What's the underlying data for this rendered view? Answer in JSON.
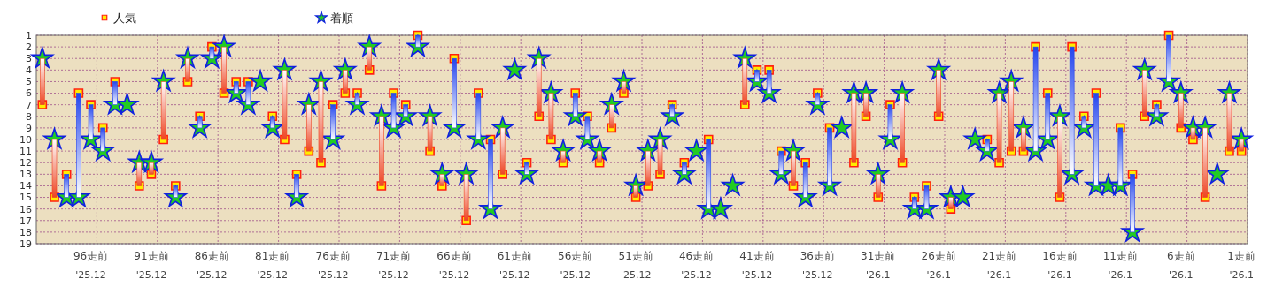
{
  "chart_data": {
    "type": "scatter",
    "categories": [
      null,
      null,
      null,
      null,
      "96走前\n'25.12",
      null,
      null,
      null,
      null,
      "91走前\n'25.12",
      null,
      null,
      null,
      null,
      "86走前\n'25.12",
      null,
      null,
      null,
      null,
      "81走前\n'25.12",
      null,
      null,
      null,
      null,
      "76走前\n'25.12",
      null,
      null,
      null,
      null,
      "71走前\n'25.12",
      null,
      null,
      null,
      null,
      "66走前\n'25.12",
      null,
      null,
      null,
      null,
      "61走前\n'25.12",
      null,
      null,
      null,
      null,
      "56走前\n'25.12",
      null,
      null,
      null,
      null,
      "51走前\n'25.12",
      null,
      null,
      null,
      null,
      "46走前\n'25.12",
      null,
      null,
      null,
      null,
      "41走前\n'25.12",
      null,
      null,
      null,
      null,
      "36走前\n'25.12",
      null,
      null,
      null,
      null,
      "31走前\n'26.1",
      null,
      null,
      null,
      null,
      "26走前\n'26.1",
      null,
      null,
      null,
      null,
      "21走前\n'26.1",
      null,
      null,
      null,
      null,
      "16走前\n'26.1",
      null,
      null,
      null,
      null,
      "11走前\n'26.1",
      null,
      null,
      null,
      null,
      "6走前\n'26.1",
      null,
      null,
      null,
      null,
      "1走前\n'26.1"
    ],
    "series": [
      {
        "type": "bar",
        "base": [
          7,
          15,
          13,
          6,
          7,
          9,
          5,
          null,
          14,
          13,
          10,
          14,
          5,
          8,
          2,
          6,
          5,
          5,
          null,
          8,
          10,
          13,
          11,
          12,
          7,
          6,
          6,
          4,
          14,
          6,
          7,
          1,
          11,
          14,
          3,
          17,
          6,
          10,
          13,
          null,
          12,
          8,
          10,
          12,
          6,
          8,
          12,
          9,
          6,
          15,
          14,
          13,
          7,
          12,
          null,
          10,
          null,
          null,
          7,
          4,
          4,
          11,
          14,
          12,
          6,
          9,
          null,
          12,
          8,
          15,
          7,
          12,
          15,
          14,
          8,
          16,
          null,
          null,
          10,
          12,
          11,
          11,
          2,
          6,
          15,
          2,
          8,
          6,
          null,
          9,
          13,
          8,
          7,
          1,
          9,
          10,
          15,
          null,
          11,
          11
        ],
        "values": [
          -4,
          -5,
          2,
          9,
          3,
          2,
          2,
          null,
          -2,
          -1,
          -5,
          1,
          -2,
          1,
          1,
          -4,
          1,
          2,
          null,
          1,
          -6,
          2,
          -4,
          -7,
          3,
          -2,
          1,
          -2,
          -6,
          3,
          1,
          1,
          -3,
          -1,
          6,
          -4,
          4,
          6,
          -4,
          null,
          1,
          -5,
          -4,
          -1,
          2,
          2,
          -1,
          -2,
          -1,
          -1,
          -3,
          -3,
          1,
          1,
          null,
          6,
          null,
          null,
          -4,
          1,
          2,
          2,
          -3,
          3,
          1,
          5,
          null,
          -6,
          -2,
          -2,
          3,
          -6,
          1,
          2,
          -4,
          -1,
          null,
          null,
          1,
          -6,
          -6,
          -2,
          9,
          4,
          -7,
          11,
          1,
          8,
          null,
          5,
          5,
          -4,
          1,
          4,
          -3,
          -1,
          -6,
          null,
          -5,
          -1
        ],
        "colors": [
          "#ee4422",
          "#ee4422",
          "#2244ee",
          "#2244ee",
          "#2244ee",
          "#2244ee",
          "#2244ee",
          null,
          "#ee4422",
          "#ee4422",
          "#ee4422",
          "#2244ee",
          "#ee4422",
          "#2244ee",
          "#2244ee",
          "#ee4422",
          "#2244ee",
          "#2244ee",
          null,
          "#2244ee",
          "#ee4422",
          "#2244ee",
          "#ee4422",
          "#ee4422",
          "#2244ee",
          "#ee4422",
          "#2244ee",
          "#ee4422",
          "#ee4422",
          "#2244ee",
          "#2244ee",
          "#2244ee",
          "#ee4422",
          "#ee4422",
          "#2244ee",
          "#ee4422",
          "#2244ee",
          "#2244ee",
          "#ee4422",
          null,
          "#2244ee",
          "#ee4422",
          "#ee4422",
          "#ee4422",
          "#2244ee",
          "#2244ee",
          "#ee4422",
          "#ee4422",
          "#ee4422",
          "#ee4422",
          "#ee4422",
          "#ee4422",
          "#2244ee",
          "#2244ee",
          null,
          "#2244ee",
          null,
          null,
          "#ee4422",
          "#2244ee",
          "#2244ee",
          "#2244ee",
          "#ee4422",
          "#2244ee",
          "#2244ee",
          "#2244ee",
          null,
          "#ee4422",
          "#ee4422",
          "#ee4422",
          "#2244ee",
          "#ee4422",
          "#2244ee",
          "#2244ee",
          "#ee4422",
          "#ee4422",
          null,
          null,
          "#2244ee",
          "#ee4422",
          "#ee4422",
          "#ee4422",
          "#2244ee",
          "#2244ee",
          "#ee4422",
          "#2244ee",
          "#2244ee",
          "#2244ee",
          null,
          "#2244ee",
          "#2244ee",
          "#ee4422",
          "#2244ee",
          "#2244ee",
          "#ee4422",
          "#ee4422",
          "#ee4422",
          null,
          "#ee4422",
          "#ee4422"
        ]
      },
      {
        "name": "人気",
        "marker": "square",
        "color": "#ffee00",
        "values": [
          7,
          15,
          13,
          6,
          7,
          9,
          5,
          null,
          14,
          13,
          10,
          14,
          5,
          8,
          2,
          6,
          5,
          5,
          null,
          8,
          10,
          13,
          11,
          12,
          7,
          6,
          6,
          4,
          14,
          6,
          7,
          1,
          11,
          14,
          3,
          17,
          6,
          10,
          13,
          null,
          12,
          8,
          10,
          12,
          6,
          8,
          12,
          9,
          6,
          15,
          14,
          13,
          7,
          12,
          null,
          10,
          null,
          null,
          7,
          4,
          4,
          11,
          14,
          12,
          6,
          9,
          null,
          12,
          8,
          15,
          7,
          12,
          15,
          14,
          8,
          16,
          null,
          null,
          10,
          12,
          11,
          11,
          2,
          6,
          15,
          2,
          8,
          6,
          null,
          9,
          13,
          8,
          7,
          1,
          9,
          10,
          15,
          null,
          11,
          11
        ]
      },
      {
        "name": "着順",
        "marker": "star",
        "color": "#22cc22",
        "values": [
          3,
          10,
          15,
          15,
          10,
          11,
          7,
          7,
          12,
          12,
          5,
          15,
          3,
          9,
          3,
          2,
          6,
          7,
          5,
          9,
          4,
          15,
          7,
          5,
          10,
          4,
          7,
          2,
          8,
          9,
          8,
          2,
          8,
          13,
          9,
          13,
          10,
          16,
          9,
          4,
          13,
          3,
          6,
          11,
          8,
          10,
          11,
          7,
          5,
          14,
          11,
          10,
          8,
          13,
          11,
          16,
          16,
          14,
          3,
          5,
          6,
          13,
          11,
          15,
          7,
          14,
          9,
          6,
          6,
          13,
          10,
          6,
          16,
          16,
          4,
          15,
          15,
          10,
          11,
          6,
          5,
          9,
          11,
          10,
          8,
          13,
          9,
          14,
          14,
          14,
          18,
          4,
          8,
          5,
          6,
          9,
          9,
          13,
          6,
          10
        ]
      }
    ],
    "ylim": [
      19,
      1
    ],
    "yticks": [
      1,
      2,
      3,
      4,
      5,
      6,
      7,
      8,
      9,
      10,
      11,
      12,
      13,
      14,
      15,
      16,
      17,
      18,
      19
    ],
    "grid": true,
    "legend": "top left"
  }
}
